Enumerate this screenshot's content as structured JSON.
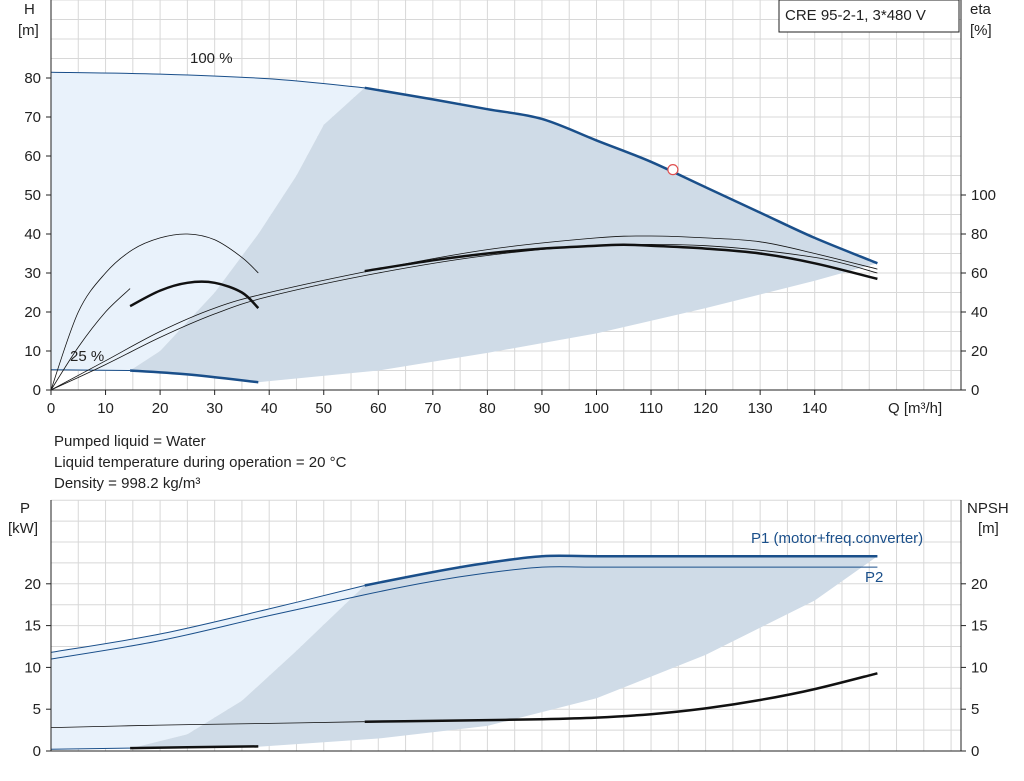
{
  "model_label": "CRE 95-2-1, 3*480 V",
  "upper_panel": {
    "y_left_label_line1": "H",
    "y_left_label_line2": "[m]",
    "y_right_label_line1": "eta",
    "y_right_label_line2": "[%]",
    "x_label": "Q [m³/h]",
    "speed_label_top": "100 %",
    "speed_label_bottom": "25 %"
  },
  "liquid_info": {
    "line1": "Pumped liquid = Water",
    "line2": "Liquid temperature during operation = 20 °C",
    "line3": "Density = 998.2 kg/m³"
  },
  "lower_panel": {
    "y_left_label_line1": "P",
    "y_left_label_line2": "[kW]",
    "y_right_label_line1": "NPSH",
    "y_right_label_line2": "[m]",
    "p1_label": "P1 (motor+freq.converter)",
    "p2_label": "P2"
  },
  "colors": {
    "grid": "#d8d8d8",
    "axis": "#222222",
    "light_region": "#e9f2fb",
    "dark_region": "#cfdbe7",
    "head_curve": "#1a4f8a",
    "power_curve": "#1a4f8a",
    "eta_curve": "#111111",
    "npsh_curve": "#111111",
    "duty_point": "#e05050"
  },
  "chart_data": [
    {
      "type": "line",
      "title": "",
      "xlabel": "Q [m³/h]",
      "ylabel": "H [m]",
      "ylabel_right": "eta [%]",
      "xlim": [
        0,
        165
      ],
      "ylim": [
        0,
        90
      ],
      "ylim_right": [
        0,
        180
      ],
      "x_ticks": [
        0,
        10,
        20,
        30,
        40,
        50,
        60,
        70,
        80,
        90,
        100,
        110,
        120,
        130,
        140
      ],
      "y_ticks": [
        0,
        10,
        20,
        30,
        40,
        50,
        60,
        70,
        80
      ],
      "y_right_ticks": [
        0,
        20,
        40,
        60,
        80,
        100
      ],
      "grid": true,
      "series": [
        {
          "role": "head_100",
          "x": [
            0,
            20,
            40,
            57.5,
            70,
            80,
            90,
            100,
            110,
            120,
            130,
            140,
            151.5
          ],
          "y": [
            81.5,
            81,
            79.8,
            77.5,
            74.5,
            72,
            69.5,
            64,
            58.5,
            52,
            45.5,
            39,
            32.5
          ]
        },
        {
          "role": "head_25",
          "x": [
            0,
            14.5,
            25,
            38
          ],
          "y": [
            5.2,
            5.0,
            4.0,
            2.0
          ]
        },
        {
          "role": "eta_100_thin",
          "x": [
            0,
            10,
            20,
            30,
            40,
            60,
            80,
            100,
            110,
            120,
            130,
            140,
            151.5
          ],
          "y": [
            0,
            15,
            30,
            42,
            50,
            62,
            72,
            78,
            79,
            78,
            76,
            70,
            62
          ]
        },
        {
          "role": "eta_100_thick",
          "x": [
            57.5,
            70,
            80,
            90,
            100,
            105,
            110,
            120,
            130,
            140,
            151.5
          ],
          "y": [
            61,
            66.5,
            70,
            72.5,
            74,
            74.5,
            74,
            72.5,
            70,
            65,
            57
          ]
        },
        {
          "role": "eta_100_thin2",
          "x": [
            0,
            10,
            20,
            30,
            40,
            60,
            80,
            100,
            120,
            140,
            151.5
          ],
          "y": [
            0,
            13,
            27,
            39,
            48,
            60,
            69,
            74,
            74,
            68,
            60
          ]
        },
        {
          "role": "eta_25_thin",
          "x": [
            0,
            5,
            10,
            15,
            20,
            25,
            30,
            35,
            38
          ],
          "y": [
            0,
            40,
            60,
            72,
            78,
            80,
            77,
            68,
            60
          ]
        },
        {
          "role": "eta_25_thick",
          "x": [
            14.5,
            20,
            25,
            30,
            35,
            38
          ],
          "y": [
            43,
            51,
            55,
            55,
            50,
            42
          ]
        },
        {
          "role": "eta_25_thin2",
          "x": [
            0,
            5,
            10,
            14.5
          ],
          "y": [
            0,
            22,
            40,
            52
          ]
        }
      ],
      "duty_point": {
        "x": 114,
        "y": 56.5
      },
      "regions": {
        "light": {
          "x": [
            0,
            57.5,
            57.5,
            14.5,
            0
          ],
          "y": [
            81.5,
            77.5,
            0,
            0,
            0
          ]
        },
        "dark_boundary_left": {
          "x": [
            14.5,
            20,
            30,
            38,
            45,
            50,
            57.5
          ],
          "y": [
            5,
            10,
            25,
            40,
            55,
            68,
            77.5
          ]
        },
        "dark_boundary_bottom": {
          "x": [
            38,
            60,
            80,
            100,
            120,
            140,
            151.5
          ],
          "y": [
            2,
            5,
            9.5,
            14.5,
            21,
            28,
            32.5
          ]
        }
      }
    },
    {
      "type": "line",
      "title": "",
      "xlabel": "Q [m³/h]",
      "ylabel": "P [kW]",
      "ylabel_right": "NPSH [m]",
      "xlim": [
        0,
        165
      ],
      "ylim": [
        0,
        26
      ],
      "ylim_right": [
        0,
        26
      ],
      "y_ticks": [
        0,
        5,
        10,
        15,
        20
      ],
      "y_right_ticks": [
        0,
        5,
        10,
        15,
        20
      ],
      "grid": true,
      "series": [
        {
          "role": "p1_100",
          "name": "P1 (motor+freq.converter)",
          "x": [
            0,
            20,
            40,
            57.5,
            70,
            80,
            90,
            100,
            120,
            140,
            151.5
          ],
          "y": [
            11.8,
            14.0,
            17.0,
            19.8,
            21.4,
            22.5,
            23.3,
            23.3,
            23.3,
            23.3,
            23.3
          ]
        },
        {
          "role": "p2_100",
          "name": "P2",
          "x": [
            0,
            20,
            40,
            57.5,
            70,
            80,
            90,
            100,
            120,
            140,
            151.5
          ],
          "y": [
            11.0,
            13.2,
            16.2,
            18.7,
            20.3,
            21.3,
            22.0,
            22.0,
            22.0,
            22.0,
            22.0
          ]
        },
        {
          "role": "p1_25",
          "x": [
            0,
            14.5,
            25,
            38
          ],
          "y": [
            0.2,
            0.35,
            0.45,
            0.55
          ]
        },
        {
          "role": "npsh_100",
          "x": [
            0,
            20,
            40,
            57.5,
            70,
            80,
            90,
            100,
            110,
            120,
            130,
            140,
            151.5
          ],
          "y": [
            2.8,
            3.1,
            3.3,
            3.5,
            3.6,
            3.7,
            3.8,
            4.0,
            4.4,
            5.1,
            6.1,
            7.4,
            9.3
          ]
        }
      ],
      "regions": {
        "light": {
          "x": [
            0,
            57.5,
            57.5,
            14.5,
            0
          ],
          "y": [
            11.8,
            19.8,
            0,
            0,
            0
          ]
        },
        "dark_boundary_left": {
          "x": [
            14.5,
            25,
            35,
            45,
            57.5
          ],
          "y": [
            0.3,
            2,
            6,
            12,
            19.8
          ]
        },
        "dark_boundary_bottom": {
          "x": [
            38,
            60,
            80,
            100,
            120,
            140,
            151.5
          ],
          "y": [
            0.5,
            1.5,
            3,
            6.3,
            11.5,
            18,
            23.3
          ]
        }
      }
    }
  ]
}
